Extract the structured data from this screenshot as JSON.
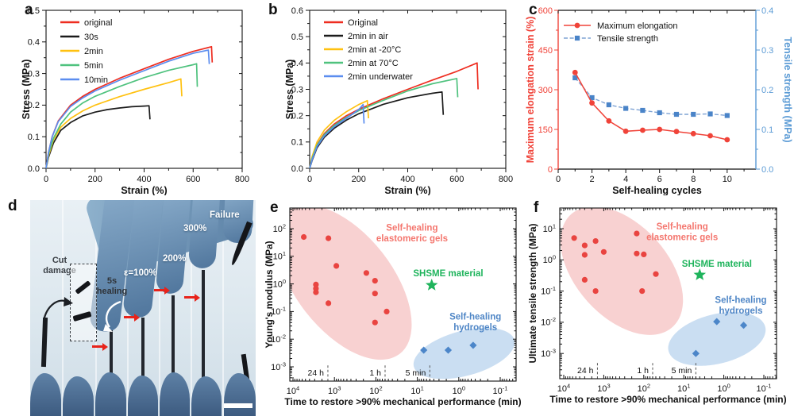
{
  "panels": {
    "a": {
      "letter": "a"
    },
    "b": {
      "letter": "b"
    },
    "c": {
      "letter": "c"
    },
    "d": {
      "letter": "d",
      "photo": {
        "cut_damage": "Cut damage",
        "healing": "5s healing",
        "eps100": "ε=100%",
        "p200": "200%",
        "p300": "300%",
        "failure": "Failure"
      }
    },
    "e": {
      "letter": "e"
    },
    "f": {
      "letter": "f"
    }
  },
  "chart_data": [
    {
      "id": "a",
      "type": "line",
      "xlabel": "Strain (%)",
      "ylabel": "Stress (MPa)",
      "xlim": [
        0,
        800
      ],
      "ylim": [
        0,
        0.5
      ],
      "xticks": [
        0,
        200,
        400,
        600,
        800
      ],
      "yticks": [
        0,
        0.1,
        0.2,
        0.3,
        0.4,
        0.5
      ],
      "x_minor": 100,
      "y_minor": 0.05,
      "ydec": 1,
      "legend_position": "top-left",
      "series": [
        {
          "name": "original",
          "color": "#ee2d20",
          "points": [
            [
              0,
              0
            ],
            [
              10,
              0.05
            ],
            [
              25,
              0.1
            ],
            [
              50,
              0.15
            ],
            [
              100,
              0.2
            ],
            [
              150,
              0.228
            ],
            [
              200,
              0.25
            ],
            [
              300,
              0.285
            ],
            [
              400,
              0.315
            ],
            [
              500,
              0.345
            ],
            [
              600,
              0.37
            ],
            [
              660,
              0.382
            ],
            [
              675,
              0.385
            ],
            [
              678,
              0.335
            ]
          ]
        },
        {
          "name": "30s",
          "color": "#1b1b1b",
          "points": [
            [
              0,
              0
            ],
            [
              10,
              0.035
            ],
            [
              30,
              0.08
            ],
            [
              60,
              0.12
            ],
            [
              100,
              0.145
            ],
            [
              150,
              0.166
            ],
            [
              200,
              0.178
            ],
            [
              250,
              0.186
            ],
            [
              300,
              0.191
            ],
            [
              350,
              0.195
            ],
            [
              400,
              0.197
            ],
            [
              420,
              0.198
            ],
            [
              424,
              0.155
            ]
          ]
        },
        {
          "name": "2min",
          "color": "#ffc110",
          "points": [
            [
              0,
              0
            ],
            [
              10,
              0.04
            ],
            [
              30,
              0.09
            ],
            [
              60,
              0.13
            ],
            [
              100,
              0.158
            ],
            [
              150,
              0.182
            ],
            [
              200,
              0.2
            ],
            [
              300,
              0.227
            ],
            [
              400,
              0.25
            ],
            [
              500,
              0.271
            ],
            [
              550,
              0.283
            ],
            [
              554,
              0.228
            ]
          ]
        },
        {
          "name": "5min",
          "color": "#4fc27e",
          "points": [
            [
              0,
              0
            ],
            [
              10,
              0.045
            ],
            [
              30,
              0.095
            ],
            [
              60,
              0.14
            ],
            [
              100,
              0.178
            ],
            [
              150,
              0.207
            ],
            [
              200,
              0.228
            ],
            [
              300,
              0.259
            ],
            [
              400,
              0.287
            ],
            [
              500,
              0.31
            ],
            [
              600,
              0.328
            ],
            [
              614,
              0.331
            ],
            [
              617,
              0.258
            ]
          ]
        },
        {
          "name": "10min",
          "color": "#5b8def",
          "points": [
            [
              0,
              0
            ],
            [
              10,
              0.05
            ],
            [
              25,
              0.1
            ],
            [
              50,
              0.148
            ],
            [
              100,
              0.196
            ],
            [
              150,
              0.223
            ],
            [
              200,
              0.245
            ],
            [
              300,
              0.279
            ],
            [
              400,
              0.309
            ],
            [
              500,
              0.339
            ],
            [
              600,
              0.364
            ],
            [
              662,
              0.374
            ],
            [
              666,
              0.33
            ]
          ]
        }
      ]
    },
    {
      "id": "b",
      "type": "line",
      "xlabel": "Strain (%)",
      "ylabel": "Stress (MPa)",
      "xlim": [
        0,
        800
      ],
      "ylim": [
        0,
        0.6
      ],
      "xticks": [
        0,
        200,
        400,
        600,
        800
      ],
      "yticks": [
        0,
        0.1,
        0.2,
        0.3,
        0.4,
        0.5,
        0.6
      ],
      "x_minor": 100,
      "y_minor": 0.05,
      "ydec": 1,
      "legend_position": "top-left",
      "series": [
        {
          "name": "Original",
          "color": "#ee2d20",
          "points": [
            [
              0,
              0
            ],
            [
              10,
              0.04
            ],
            [
              30,
              0.09
            ],
            [
              60,
              0.132
            ],
            [
              100,
              0.168
            ],
            [
              150,
              0.2
            ],
            [
              200,
              0.224
            ],
            [
              300,
              0.264
            ],
            [
              400,
              0.3
            ],
            [
              500,
              0.335
            ],
            [
              600,
              0.368
            ],
            [
              683,
              0.4
            ],
            [
              687,
              0.3
            ]
          ]
        },
        {
          "name": "2min in air",
          "color": "#1b1b1b",
          "points": [
            [
              0,
              0
            ],
            [
              10,
              0.03
            ],
            [
              30,
              0.078
            ],
            [
              60,
              0.118
            ],
            [
              100,
              0.152
            ],
            [
              150,
              0.183
            ],
            [
              200,
              0.207
            ],
            [
              300,
              0.243
            ],
            [
              400,
              0.268
            ],
            [
              500,
              0.285
            ],
            [
              540,
              0.29
            ],
            [
              545,
              0.203
            ]
          ]
        },
        {
          "name": "2min at -20°C",
          "color": "#ffc110",
          "points": [
            [
              0,
              0
            ],
            [
              10,
              0.045
            ],
            [
              30,
              0.1
            ],
            [
              60,
              0.145
            ],
            [
              100,
              0.182
            ],
            [
              150,
              0.215
            ],
            [
              200,
              0.242
            ],
            [
              235,
              0.257
            ],
            [
              240,
              0.19
            ]
          ]
        },
        {
          "name": "2min at 70°C",
          "color": "#4fc27e",
          "points": [
            [
              0,
              0
            ],
            [
              10,
              0.038
            ],
            [
              30,
              0.088
            ],
            [
              60,
              0.128
            ],
            [
              100,
              0.163
            ],
            [
              150,
              0.194
            ],
            [
              200,
              0.219
            ],
            [
              300,
              0.258
            ],
            [
              400,
              0.294
            ],
            [
              500,
              0.321
            ],
            [
              600,
              0.341
            ],
            [
              604,
              0.27
            ]
          ]
        },
        {
          "name": "2min underwater",
          "color": "#5b8def",
          "points": [
            [
              0,
              0
            ],
            [
              10,
              0.033
            ],
            [
              30,
              0.083
            ],
            [
              60,
              0.123
            ],
            [
              100,
              0.158
            ],
            [
              150,
              0.19
            ],
            [
              200,
              0.223
            ],
            [
              218,
              0.242
            ],
            [
              222,
              0.17
            ]
          ]
        }
      ]
    },
    {
      "id": "c",
      "type": "dual-line",
      "xlabel": "Self-healing cycles",
      "xlim": [
        0,
        11.7
      ],
      "xticks": [
        0,
        2,
        4,
        6,
        8,
        10
      ],
      "x_minor": 1,
      "x": [
        1,
        2,
        3,
        4,
        5,
        6,
        7,
        8,
        9,
        10
      ],
      "left": {
        "label": "Maximum elongation strain (%)",
        "color": "#f04339",
        "lim": [
          0,
          600
        ],
        "ticks": [
          0,
          150,
          300,
          450,
          600
        ],
        "minor": 75,
        "dec": 0,
        "name": "Maximum elongation",
        "marker": "circle",
        "values": [
          365,
          250,
          182,
          143,
          147,
          150,
          142,
          134,
          126,
          111
        ]
      },
      "right": {
        "label": "Tensile strength (MPa)",
        "color": "#5b9bd5",
        "line_color": "#7fa3d4",
        "marker_color": "#4a84c8",
        "lim": [
          0,
          0.4
        ],
        "ticks": [
          0,
          0.1,
          0.2,
          0.3,
          0.4
        ],
        "minor": 0.05,
        "dec": 1,
        "name": "Tensile strength",
        "marker": "square",
        "values": [
          0.23,
          0.18,
          0.162,
          0.153,
          0.148,
          0.142,
          0.138,
          0.138,
          0.139,
          0.135
        ]
      }
    },
    {
      "id": "e",
      "type": "scatter-loglog",
      "xlabel": "Time to restore >90% mechanical performance (min)",
      "ylabel": "Young's modulus (MPa)",
      "x_reversed": true,
      "xticks_exp": [
        4,
        3,
        2,
        1,
        0,
        -1
      ],
      "yticks_exp": [
        2,
        1,
        0,
        -1,
        -2,
        -3
      ],
      "groups": [
        {
          "name": "Self-healing elastomeric gels",
          "marker": "circle",
          "color": "#e94440",
          "points": [
            [
              5500,
              50
            ],
            [
              1400,
              45
            ],
            [
              900,
              4.5
            ],
            [
              2800,
              0.95
            ],
            [
              2800,
              0.68
            ],
            [
              2800,
              0.5
            ],
            [
              1400,
              0.2
            ],
            [
              170,
              2.5
            ],
            [
              105,
              1.3
            ],
            [
              105,
              0.45
            ],
            [
              105,
              0.04
            ],
            [
              55,
              0.1
            ]
          ]
        },
        {
          "name": "SHSME material",
          "marker": "star",
          "color": "#1fb45c",
          "points": [
            [
              4.5,
              0.9
            ]
          ]
        },
        {
          "name": "Self-healing hydrogels",
          "marker": "diamond",
          "color": "#4c86c9",
          "points": [
            [
              7,
              0.004
            ],
            [
              1.8,
              0.004
            ],
            [
              0.45,
              0.006
            ]
          ]
        }
      ],
      "regions": [
        {
          "fill": "#f8d1d1",
          "cx": 0.24,
          "cy": 0.43,
          "rx": 0.4,
          "ry": 0.28,
          "rot": 52
        },
        {
          "fill": "#cadef2",
          "cx": 0.77,
          "cy": 0.84,
          "rx": 0.23,
          "ry": 0.13,
          "rot": -15
        }
      ],
      "labels": [
        {
          "lines": [
            "Self-healing",
            "elastomeric gels"
          ],
          "color": "#f4766e",
          "x": 0.54,
          "y": 0.13
        },
        {
          "lines": [
            "SHSME material"
          ],
          "color": "#1fb45c",
          "x": 0.7,
          "y": 0.395
        },
        {
          "lines": [
            "Self-healing",
            "hydrogels"
          ],
          "color": "#4f86c6",
          "x": 0.82,
          "y": 0.645
        }
      ],
      "guides": [
        {
          "label": "24 h",
          "x_exp": 3.158
        },
        {
          "label": "1 h",
          "x_exp": 1.778
        },
        {
          "label": "5 min",
          "x_exp": 0.699
        }
      ]
    },
    {
      "id": "f",
      "type": "scatter-loglog",
      "xlabel": "Time to restore >90% mechanical performance (min)",
      "ylabel": "Ultimate tensile strength (MPa)",
      "x_reversed": true,
      "xticks_exp": [
        4,
        3,
        2,
        1,
        0,
        -1
      ],
      "yticks_exp": [
        1,
        0,
        -1,
        -2,
        -3
      ],
      "groups": [
        {
          "name": "Self-healing elastomeric gels",
          "marker": "circle",
          "color": "#e94440",
          "points": [
            [
              5500,
              5
            ],
            [
              3000,
              2.9
            ],
            [
              3000,
              1.45
            ],
            [
              1600,
              4
            ],
            [
              1000,
              1.8
            ],
            [
              3000,
              0.23
            ],
            [
              1600,
              0.1
            ],
            [
              150,
              7
            ],
            [
              150,
              1.6
            ],
            [
              100,
              1.5
            ],
            [
              110,
              0.1
            ],
            [
              50,
              0.35
            ]
          ]
        },
        {
          "name": "SHSME material",
          "marker": "star",
          "color": "#1fb45c",
          "points": [
            [
              4,
              0.33
            ]
          ]
        },
        {
          "name": "Self-healing hydrogels",
          "marker": "diamond",
          "color": "#4c86c9",
          "points": [
            [
              5,
              0.001
            ],
            [
              1.5,
              0.0105
            ],
            [
              0.32,
              0.008
            ]
          ]
        }
      ],
      "regions": [
        {
          "fill": "#f8d1d1",
          "cx": 0.286,
          "cy": 0.367,
          "rx": 0.35,
          "ry": 0.27,
          "rot": 48
        },
        {
          "fill": "#cadef2",
          "cx": 0.725,
          "cy": 0.767,
          "rx": 0.23,
          "ry": 0.145,
          "rot": -14
        }
      ],
      "labels": [
        {
          "lines": [
            "Self-healing",
            "elastomeric gels"
          ],
          "color": "#f4766e",
          "x": 0.565,
          "y": 0.125
        },
        {
          "lines": [
            "SHSME material"
          ],
          "color": "#1fb45c",
          "x": 0.725,
          "y": 0.345
        },
        {
          "lines": [
            "Self-healing",
            "hydrogels"
          ],
          "color": "#4f86c6",
          "x": 0.835,
          "y": 0.555
        }
      ],
      "guides": [
        {
          "label": "24 h",
          "x_exp": 3.158
        },
        {
          "label": "1 h",
          "x_exp": 1.778
        },
        {
          "label": "5 min",
          "x_exp": 0.699
        }
      ]
    }
  ]
}
